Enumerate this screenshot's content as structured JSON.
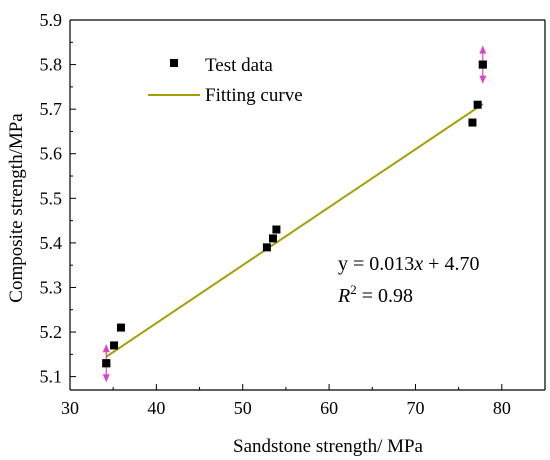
{
  "chart_data": {
    "type": "scatter",
    "xlabel": "Sandstone strength/ MPa",
    "ylabel": "Composite strength/MPa",
    "xlim": [
      30,
      85
    ],
    "ylim": [
      5.07,
      5.9
    ],
    "xticks": [
      30,
      40,
      50,
      60,
      70,
      80
    ],
    "yticks": [
      5.1,
      5.2,
      5.3,
      5.4,
      5.5,
      5.6,
      5.7,
      5.8,
      5.9
    ],
    "grid": false,
    "legend_position": "top-left",
    "series": [
      {
        "name": "Test data",
        "kind": "scatter",
        "marker": "square",
        "color": "#000000",
        "points": [
          [
            34.2,
            5.13
          ],
          [
            35.1,
            5.17
          ],
          [
            35.9,
            5.21
          ],
          [
            52.8,
            5.39
          ],
          [
            53.5,
            5.41
          ],
          [
            53.9,
            5.43
          ],
          [
            76.6,
            5.67
          ],
          [
            77.2,
            5.71
          ],
          [
            77.8,
            5.8
          ]
        ]
      },
      {
        "name": "Fitting curve",
        "kind": "line",
        "color": "#a3a000",
        "slope": 0.013,
        "intercept": 4.7,
        "x_range": [
          34.2,
          77.8
        ]
      }
    ],
    "annotations": {
      "equation": "y = 0.013x + 4.70",
      "r_squared": "R2 = 0.98",
      "equation_parts": {
        "lhs": "y = 0.013",
        "var": "x",
        "rhs": " + 4.70"
      },
      "r2_parts": {
        "symbol": "R",
        "sup": "2",
        "rest": " = 0.98"
      },
      "arrow_color": "#e040d0",
      "arrow_points": [
        [
          34.2,
          5.13
        ],
        [
          77.8,
          5.8
        ]
      ]
    }
  }
}
